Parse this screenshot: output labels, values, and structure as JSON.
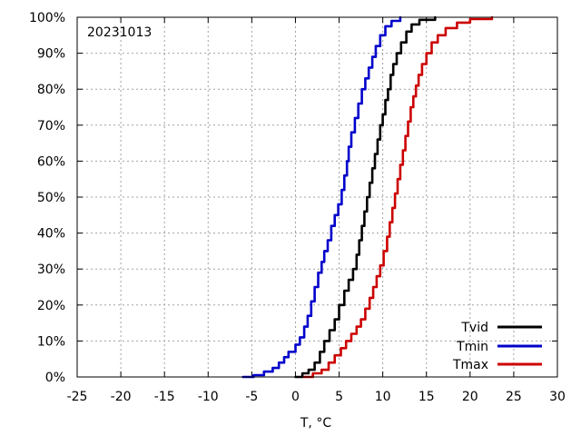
{
  "chart_data": {
    "type": "line",
    "title": "",
    "annotation": "20231013",
    "xlabel": "T, °C",
    "ylabel": "",
    "xlim": [
      -25,
      30
    ],
    "ylim": [
      0,
      100
    ],
    "x_ticks": [
      -25,
      -20,
      -15,
      -10,
      -5,
      0,
      5,
      10,
      15,
      20,
      25,
      30
    ],
    "y_ticks": [
      0,
      10,
      20,
      30,
      40,
      50,
      60,
      70,
      80,
      90,
      100
    ],
    "y_tick_suffix": "%",
    "grid": true,
    "legend_position": "bottom-right",
    "series": [
      {
        "name": "Tvid",
        "color": "#000000",
        "points": [
          [
            0.0,
            0
          ],
          [
            0.8,
            1
          ],
          [
            1.5,
            2
          ],
          [
            2.2,
            4
          ],
          [
            2.8,
            7
          ],
          [
            3.3,
            10
          ],
          [
            3.9,
            13
          ],
          [
            4.5,
            16
          ],
          [
            5.0,
            20
          ],
          [
            5.6,
            24
          ],
          [
            6.1,
            27
          ],
          [
            6.6,
            30
          ],
          [
            7.0,
            34
          ],
          [
            7.3,
            38
          ],
          [
            7.6,
            42
          ],
          [
            7.9,
            46
          ],
          [
            8.2,
            50
          ],
          [
            8.5,
            54
          ],
          [
            8.8,
            58
          ],
          [
            9.1,
            62
          ],
          [
            9.4,
            66
          ],
          [
            9.7,
            70
          ],
          [
            10.0,
            73
          ],
          [
            10.3,
            77
          ],
          [
            10.6,
            80
          ],
          [
            10.9,
            84
          ],
          [
            11.2,
            87
          ],
          [
            11.6,
            90
          ],
          [
            12.1,
            93
          ],
          [
            12.7,
            96
          ],
          [
            13.3,
            98
          ],
          [
            14.2,
            99.3
          ],
          [
            16.0,
            100
          ]
        ]
      },
      {
        "name": "Tmin",
        "color": "#0000cc",
        "points": [
          [
            -6.0,
            0
          ],
          [
            -4.8,
            0.5
          ],
          [
            -3.6,
            1.5
          ],
          [
            -2.6,
            2.5
          ],
          [
            -1.9,
            4
          ],
          [
            -1.3,
            5.5
          ],
          [
            -0.8,
            7
          ],
          [
            0.0,
            9
          ],
          [
            0.5,
            11
          ],
          [
            1.0,
            14
          ],
          [
            1.4,
            17
          ],
          [
            1.8,
            21
          ],
          [
            2.2,
            25
          ],
          [
            2.6,
            29
          ],
          [
            3.0,
            32
          ],
          [
            3.3,
            35
          ],
          [
            3.7,
            38
          ],
          [
            4.1,
            42
          ],
          [
            4.5,
            45
          ],
          [
            4.9,
            48
          ],
          [
            5.3,
            52
          ],
          [
            5.6,
            56
          ],
          [
            5.9,
            60
          ],
          [
            6.1,
            64
          ],
          [
            6.4,
            68
          ],
          [
            6.8,
            72
          ],
          [
            7.2,
            76
          ],
          [
            7.6,
            80
          ],
          [
            8.0,
            83
          ],
          [
            8.4,
            86
          ],
          [
            8.8,
            89
          ],
          [
            9.2,
            92
          ],
          [
            9.7,
            95
          ],
          [
            10.3,
            97.5
          ],
          [
            11.0,
            99
          ],
          [
            12.0,
            100
          ]
        ]
      },
      {
        "name": "Tmax",
        "color": "#cc0000",
        "points": [
          [
            1.0,
            0
          ],
          [
            2.0,
            1
          ],
          [
            3.0,
            2
          ],
          [
            3.8,
            4
          ],
          [
            4.5,
            6
          ],
          [
            5.2,
            8
          ],
          [
            5.8,
            10
          ],
          [
            6.4,
            12
          ],
          [
            7.0,
            14
          ],
          [
            7.5,
            16
          ],
          [
            8.0,
            19
          ],
          [
            8.5,
            22
          ],
          [
            8.9,
            25
          ],
          [
            9.3,
            28
          ],
          [
            9.7,
            31
          ],
          [
            10.1,
            35
          ],
          [
            10.5,
            39
          ],
          [
            10.8,
            43
          ],
          [
            11.1,
            47
          ],
          [
            11.4,
            51
          ],
          [
            11.7,
            55
          ],
          [
            12.0,
            59
          ],
          [
            12.3,
            63
          ],
          [
            12.6,
            67
          ],
          [
            12.9,
            71
          ],
          [
            13.2,
            75
          ],
          [
            13.5,
            78
          ],
          [
            13.8,
            81
          ],
          [
            14.1,
            84
          ],
          [
            14.5,
            87
          ],
          [
            15.0,
            90
          ],
          [
            15.6,
            93
          ],
          [
            16.3,
            95
          ],
          [
            17.2,
            97
          ],
          [
            18.5,
            98.5
          ],
          [
            20.0,
            99.5
          ],
          [
            22.5,
            100
          ]
        ]
      }
    ]
  }
}
